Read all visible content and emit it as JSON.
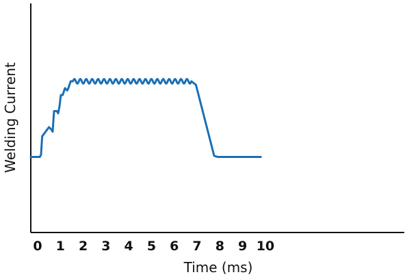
{
  "chart_data": {
    "type": "line",
    "title": "",
    "xlabel": "Time (ms)",
    "ylabel": "Welding Current",
    "xlim": [
      -0.3,
      16.1
    ],
    "ylim": [
      0,
      10
    ],
    "x_ticks": [
      "0",
      "1",
      "2",
      "3",
      "4",
      "5",
      "6",
      "7",
      "8",
      "9",
      "10"
    ],
    "y_ticks": [],
    "grid": false,
    "legend": "none",
    "line_color": "#1a6fb5",
    "axis_color": "#111111",
    "series": [
      {
        "name": "",
        "points": [
          [
            -0.3,
            3.3
          ],
          [
            0.1,
            3.3
          ],
          [
            0.15,
            3.4
          ],
          [
            0.2,
            4.2
          ],
          [
            0.35,
            4.4
          ],
          [
            0.5,
            4.6
          ],
          [
            0.6,
            4.5
          ],
          [
            0.66,
            4.4
          ],
          [
            0.72,
            5.3
          ],
          [
            0.85,
            5.3
          ],
          [
            0.9,
            5.2
          ],
          [
            0.96,
            5.5
          ],
          [
            1.02,
            6.0
          ],
          [
            1.1,
            6.0
          ],
          [
            1.2,
            6.3
          ],
          [
            1.3,
            6.2
          ],
          [
            1.35,
            6.3
          ],
          [
            1.45,
            6.6
          ],
          [
            1.55,
            6.6
          ],
          [
            6.75,
            6.6
          ],
          [
            6.95,
            6.45
          ],
          [
            7.75,
            3.35
          ],
          [
            7.9,
            3.3
          ],
          [
            9.8,
            3.3
          ]
        ],
        "ripple": {
          "x_start": 1.55,
          "x_end": 6.75,
          "cycles": 20,
          "amplitude": 0.1
        }
      }
    ]
  }
}
